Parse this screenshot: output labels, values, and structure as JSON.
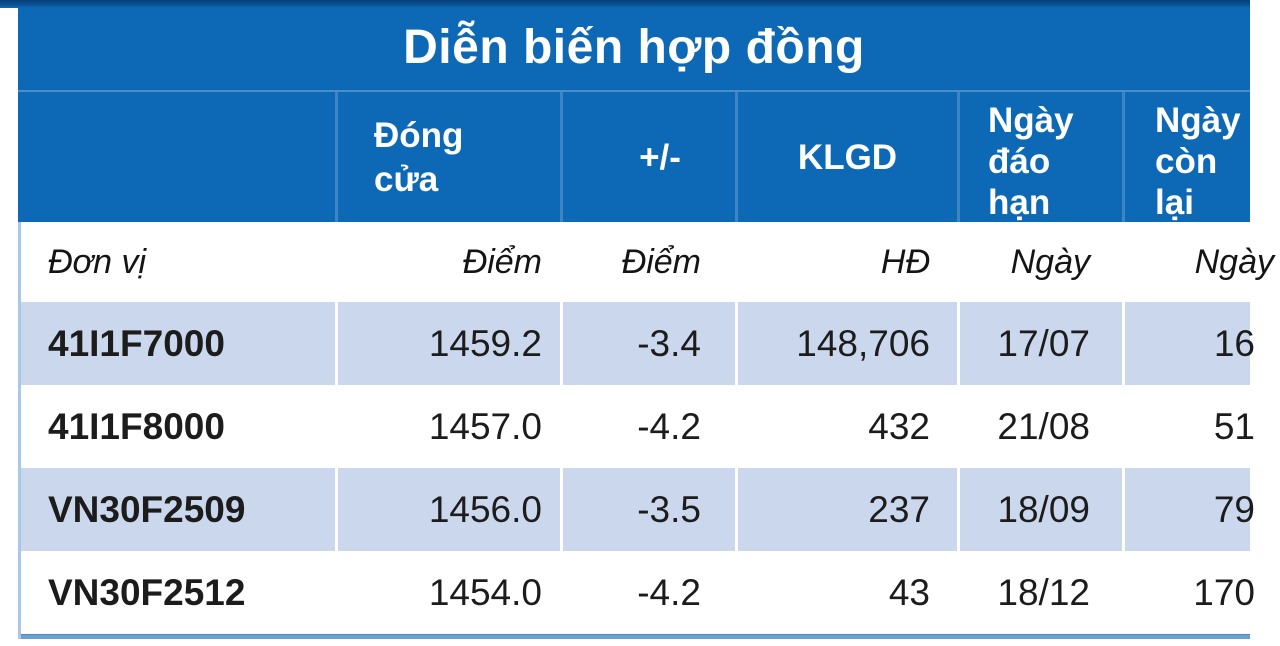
{
  "chart_data": {
    "type": "table",
    "title": "Diễn biến hợp đồng",
    "columns": [
      "",
      "Đóng cửa",
      "+/-",
      "KLGD",
      "Ngày đáo hạn",
      "Ngày còn lại"
    ],
    "units": [
      "Đơn vị",
      "Điểm",
      "Điểm",
      "HĐ",
      "Ngày",
      "Ngày"
    ],
    "rows": [
      [
        "41I1F7000",
        "1459.2",
        "-3.4",
        "148,706",
        "17/07",
        "16"
      ],
      [
        "41I1F8000",
        "1457.0",
        "-4.2",
        "432",
        "21/08",
        "51"
      ],
      [
        "VN30F2509",
        "1456.0",
        "-3.5",
        "237",
        "18/09",
        "79"
      ],
      [
        "VN30F2512",
        "1454.0",
        "-4.2",
        "43",
        "18/12",
        "170"
      ]
    ],
    "layout": {
      "header_background": "#0d68b5",
      "alt_row_background": "#cbd7ec",
      "border_color": "#6aa0d2",
      "text_color": "#1c1c1c",
      "title_position": "top-center"
    }
  }
}
